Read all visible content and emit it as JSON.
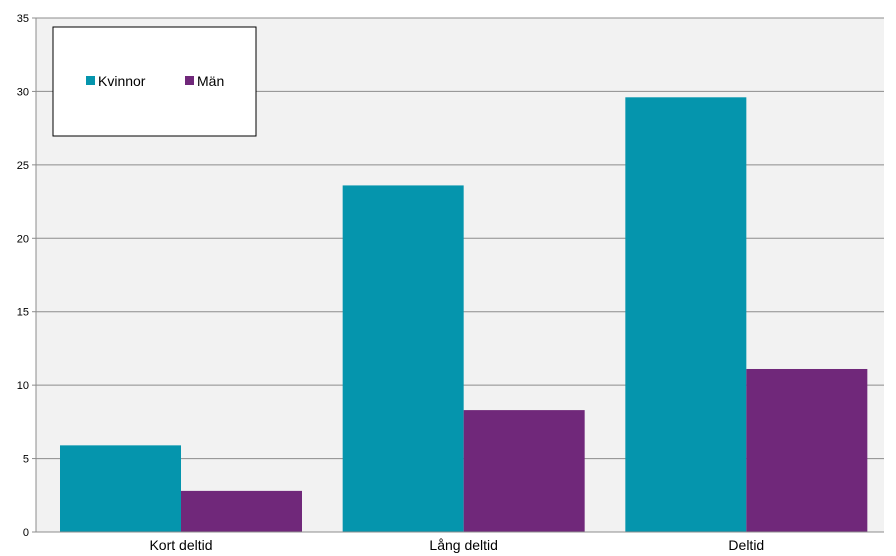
{
  "chart_data": {
    "type": "bar",
    "categories": [
      "Kort deltid",
      "Lång deltid",
      "Deltid"
    ],
    "series": [
      {
        "name": "Kvinnor",
        "values": [
          5.9,
          23.6,
          29.6
        ],
        "color": "#0595ad"
      },
      {
        "name": "Män",
        "values": [
          2.8,
          8.3,
          11.1
        ],
        "color": "#70287a"
      }
    ],
    "yticks": [
      0,
      5,
      10,
      15,
      20,
      25,
      30,
      35
    ],
    "ylim": [
      0,
      35
    ],
    "grid": true,
    "legend_position": "top-left",
    "plot_background": "#f2f2f2",
    "title": "",
    "xlabel": "",
    "ylabel": ""
  }
}
